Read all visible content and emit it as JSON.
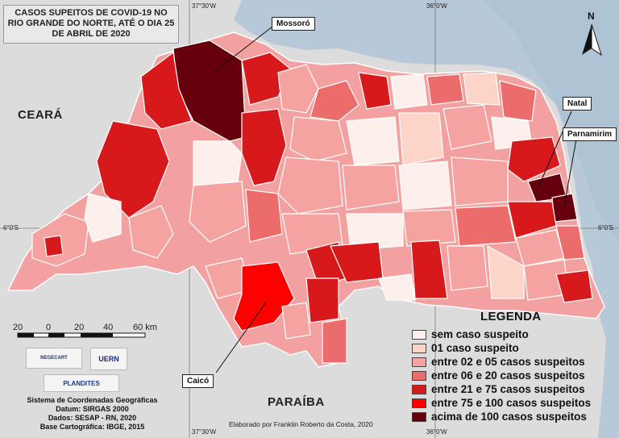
{
  "title": "CASOS SUPEITOS DE COVID-19 NO RIO GRANDE DO NORTE, ATÉ O DIA 25 DE ABRIL DE 2020",
  "callouts": {
    "mossoro": "Mossoró",
    "natal": "Natal",
    "parnamirim": "Parnamirim",
    "caico": "Caicó"
  },
  "states": {
    "ceara": "CEARÁ",
    "paraiba": "PARAÍBA"
  },
  "coordinates": {
    "lon_left": "37°30'W",
    "lon_right": "36°0'W",
    "lat_left": "6°0'S",
    "lat_right": "6°0'S"
  },
  "north_arrow": "N",
  "scale_bar": {
    "labels": [
      "20",
      "0",
      "20",
      "40",
      "60 km"
    ]
  },
  "legend": {
    "title": "LEGENDA",
    "items": [
      {
        "label": "sem caso suspeito",
        "color": "#fdf0ec"
      },
      {
        "label": "01 caso suspeito",
        "color": "#fcd5c8"
      },
      {
        "label": "entre 02 e 05 casos suspeitos",
        "color": "#f4a3a0"
      },
      {
        "label": "entre 06 e 20 casos suspeitos",
        "color": "#ec6b6b"
      },
      {
        "label": "entre 21 e 75 casos suspeitos",
        "color": "#d7191c"
      },
      {
        "label": "entre 75 e 100 casos suspeitos",
        "color": "#ff0000"
      },
      {
        "label": "acima de 100 casos suspeitos",
        "color": "#67000d"
      }
    ]
  },
  "logos": {
    "negecart": "NEGECART",
    "uern": "UERN",
    "plandites": "PLANDITES"
  },
  "credits": [
    "Sistema de Coordenadas Geográficas",
    "Datum: SIRGAS 2000",
    "Dados: SESAP - RN, 2020",
    "Base Cartográfica: IBGE, 2015"
  ],
  "author": "Elaborado por Franklin Roberto da Costa, 2020",
  "colors": {
    "ocean": "#b6c7d6",
    "land": "#e3e3e3",
    "border": "#ffffff"
  }
}
